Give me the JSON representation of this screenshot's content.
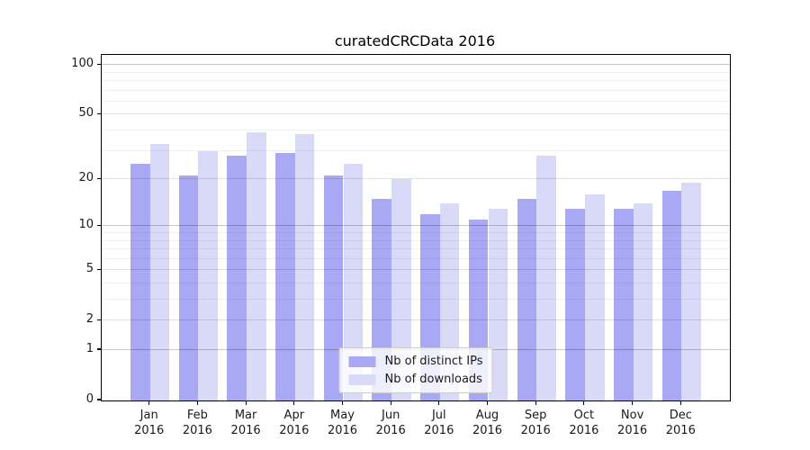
{
  "chart_data": {
    "type": "bar",
    "title": "curatedCRCData 2016",
    "year": "2016",
    "categories": [
      "Jan",
      "Feb",
      "Mar",
      "Apr",
      "May",
      "Jun",
      "Jul",
      "Aug",
      "Sep",
      "Oct",
      "Nov",
      "Dec"
    ],
    "series": [
      {
        "name": "Nb of distinct IPs",
        "color": "#a8a8f4",
        "values": [
          25,
          21,
          28,
          29,
          21,
          15,
          12,
          11,
          15,
          13,
          13,
          17
        ]
      },
      {
        "name": "Nb of downloads",
        "color": "#d9d9f8",
        "values": [
          33,
          30,
          39,
          38,
          25,
          20,
          14,
          13,
          28,
          16,
          14,
          19
        ]
      }
    ],
    "y_ticks": [
      0,
      1,
      2,
      5,
      10,
      20,
      50,
      100
    ],
    "y_tick_labels": [
      "0",
      "1",
      "2",
      "5",
      "10",
      "20",
      "50",
      "100"
    ],
    "y_grid_major": [
      1,
      10,
      100
    ],
    "y_grid_sub": [
      2,
      5,
      20,
      50
    ],
    "y_grid_minor": [
      3,
      4,
      6,
      7,
      8,
      9,
      30,
      40,
      60,
      70,
      80,
      90
    ],
    "scale": "log1p (position proportional to log10(value+1))",
    "y_max_plus1": 116,
    "ylim": [
      0,
      115
    ],
    "grid": true,
    "legend_position": "lower center"
  },
  "colors": {
    "background": "#ffffff",
    "spine": "#000000",
    "text": "#1a1a1a",
    "grid_major": "rgba(0,0,0,0.22)",
    "grid_sub": "rgba(0,0,0,0.12)",
    "grid_minor": "rgba(0,0,0,0.055)",
    "legend_border": "#cccccc",
    "legend_background": "rgba(255,255,255,0.8)"
  }
}
